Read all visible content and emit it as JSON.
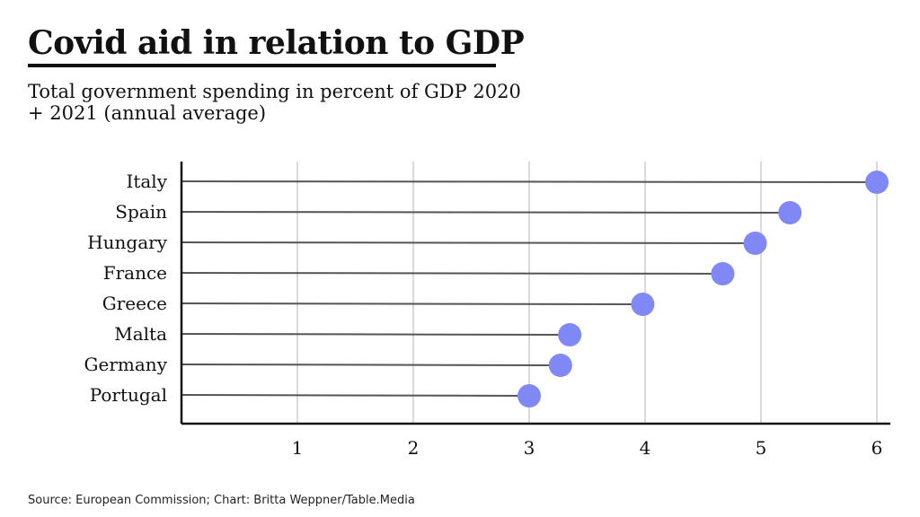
{
  "header": {
    "title": "Covid aid in relation to GDP",
    "subtitle": "Total government spending in percent of GDP 2020 + 2021 (annual average)"
  },
  "footer": {
    "source": "Source: European Commission; Chart: Britta Weppner/Table.Media"
  },
  "colors": {
    "dot": "#8088f6",
    "stem": "#555555",
    "grid": "#d9d9d9",
    "axis": "#111111"
  },
  "chart_data": {
    "type": "lollipop",
    "categories": [
      "Italy",
      "Spain",
      "Hungary",
      "France",
      "Greece",
      "Malta",
      "Germany",
      "Portugal"
    ],
    "values": [
      6.0,
      5.25,
      4.95,
      4.67,
      3.98,
      3.35,
      3.27,
      3.0
    ],
    "x_ticks": [
      "1",
      "2",
      "3",
      "4",
      "5",
      "6"
    ],
    "xlim": [
      0,
      6
    ],
    "grid": true
  }
}
